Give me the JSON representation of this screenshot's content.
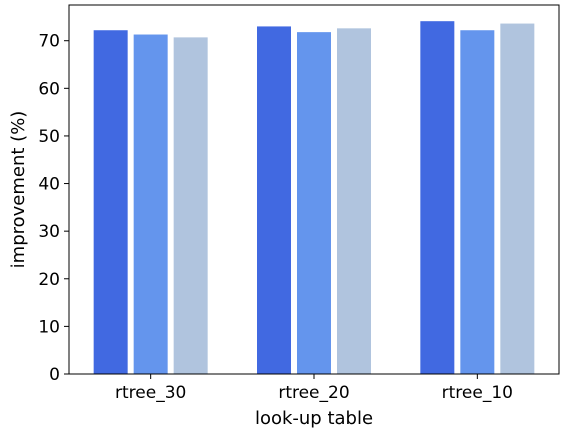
{
  "chart_data": {
    "type": "bar",
    "categories": [
      "rtree_30",
      "rtree_20",
      "rtree_10"
    ],
    "series": [
      {
        "values": [
          72.2,
          73.0,
          74.1
        ],
        "color": "#4169E1"
      },
      {
        "values": [
          71.3,
          71.8,
          72.2
        ],
        "color": "#6495ED"
      },
      {
        "values": [
          70.7,
          72.6,
          73.6
        ],
        "color": "#B0C4DE"
      }
    ],
    "title": "",
    "xlabel": "look-up table",
    "ylabel": "improvement (%)",
    "ylim": [
      0,
      77.5
    ],
    "yticks": [
      0,
      10,
      20,
      30,
      40,
      50,
      60,
      70
    ],
    "grid": false,
    "legend": "none"
  }
}
